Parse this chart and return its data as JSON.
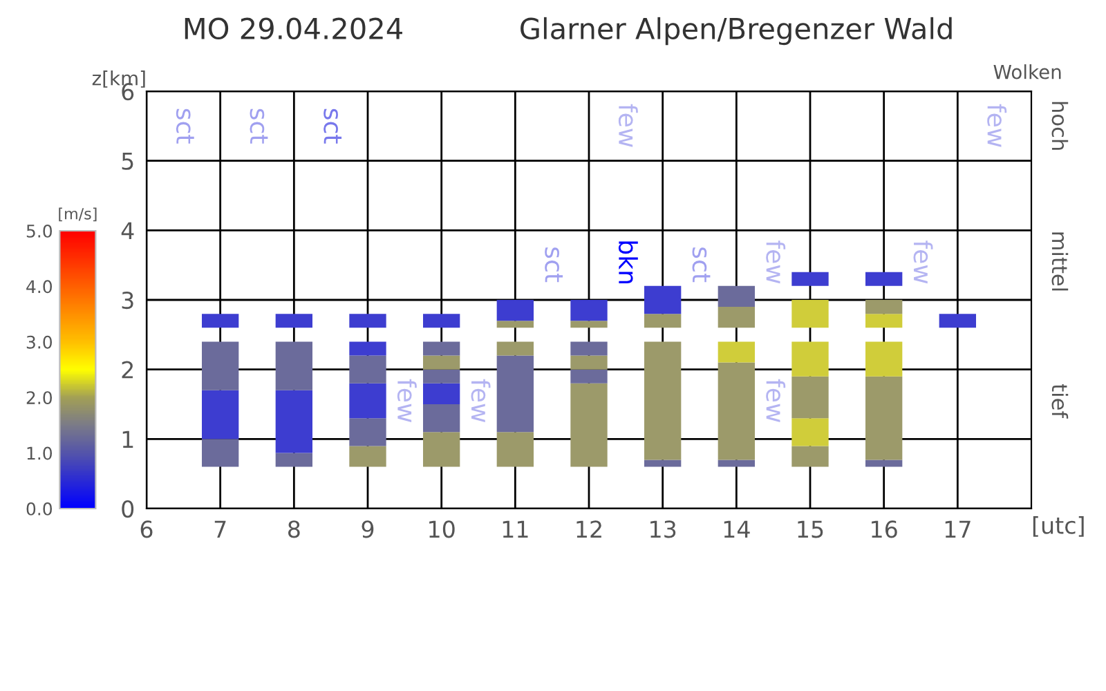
{
  "chart_data": {
    "type": "bar",
    "title": "MO 29.04.2024",
    "subtitle": "Glarner Alpen/Bregenzer Wald",
    "ylabel": "z[km]",
    "xlabel": "[utc]",
    "clabel": "[m/s]",
    "xlim": [
      6,
      18
    ],
    "xticks": [
      6,
      7,
      8,
      9,
      10,
      11,
      12,
      13,
      14,
      15,
      16,
      17
    ],
    "ylim": [
      0,
      6
    ],
    "yticks": [
      0,
      1,
      2,
      3,
      4,
      5,
      6
    ],
    "grid": true,
    "clim": [
      0,
      5
    ],
    "cticks": [
      {
        "value": 0,
        "label": "0.0"
      },
      {
        "value": 1,
        "label": "1.0"
      },
      {
        "value": 2,
        "label": "2.0"
      },
      {
        "value": 3,
        "label": "3.0"
      },
      {
        "value": 4,
        "label": "4.0"
      },
      {
        "value": 5,
        "label": "5.0"
      }
    ],
    "x": [
      7,
      8,
      9,
      10,
      11,
      12,
      13,
      14,
      15,
      16,
      17
    ],
    "series": [
      {
        "base": [
          0.6,
          0.6,
          0.6,
          0.6,
          0.6,
          0.6,
          0.6,
          0.6,
          0.6,
          0.6,
          2.6
        ],
        "values": [
          0.4,
          0.2,
          0.3,
          0.5,
          0.5,
          1.2,
          0.1,
          0.1,
          0.3,
          0.1,
          0.2
        ],
        "colors": [
          "#6b6b9b",
          "#6b6b9b",
          "#9c9a6a",
          "#9c9a6a",
          "#9c9a6a",
          "#9c9a6a",
          "#6b6b9b",
          "#6b6b9b",
          "#9c9a6a",
          "#6b6b9b",
          "#3d3dd0"
        ]
      },
      {
        "base": [
          1.0,
          0.8,
          0.9,
          1.1,
          1.1,
          1.8,
          0.7,
          0.7,
          0.9,
          0.7,
          null
        ],
        "values": [
          0.7,
          0.9,
          0.4,
          0.4,
          1.1,
          0.2,
          1.7,
          1.4,
          0.4,
          1.2,
          null
        ],
        "colors": [
          "#3d3dd0",
          "#3d3dd0",
          "#6b6b9b",
          "#6b6b9b",
          "#6b6b9b",
          "#6b6b9b",
          "#9c9a6a",
          "#9c9a6a",
          "#d0cd3a",
          "#9c9a6a",
          null
        ]
      },
      {
        "base": [
          1.7,
          1.7,
          1.3,
          1.5,
          2.2,
          2.0,
          2.6,
          2.1,
          1.3,
          1.9,
          null
        ],
        "values": [
          0.7,
          0.7,
          0.5,
          0.3,
          0.2,
          0.2,
          0.2,
          0.3,
          0.6,
          0.5,
          null
        ],
        "colors": [
          "#6b6b9b",
          "#6b6b9b",
          "#3d3dd0",
          "#3d3dd0",
          "#9c9a6a",
          "#9c9a6a",
          "#9c9a6a",
          "#d0cd3a",
          "#9c9a6a",
          "#d0cd3a",
          null
        ]
      },
      {
        "base": [
          2.6,
          2.6,
          1.8,
          1.8,
          2.6,
          2.2,
          2.8,
          2.6,
          1.9,
          2.6,
          null
        ],
        "values": [
          0.2,
          0.2,
          0.4,
          0.2,
          0.1,
          0.2,
          0.4,
          0.3,
          0.5,
          0.2,
          null
        ],
        "colors": [
          "#3d3dd0",
          "#3d3dd0",
          "#6b6b9b",
          "#6b6b9b",
          "#9c9a6a",
          "#6b6b9b",
          "#3d3dd0",
          "#9c9a6a",
          "#d0cd3a",
          "#d0cd3a",
          null
        ]
      },
      {
        "base": [
          null,
          null,
          2.2,
          2.0,
          2.7,
          2.6,
          null,
          2.9,
          2.6,
          2.8,
          null
        ],
        "values": [
          null,
          null,
          0.2,
          0.2,
          0.3,
          0.1,
          null,
          0.3,
          0.4,
          0.2,
          null
        ],
        "colors": [
          null,
          null,
          "#3d3dd0",
          "#9c9a6a",
          "#3d3dd0",
          "#9c9a6a",
          null,
          "#6b6b9b",
          "#d0cd3a",
          "#9c9a6a",
          null
        ]
      },
      {
        "base": [
          null,
          null,
          2.6,
          2.2,
          null,
          2.7,
          null,
          null,
          3.2,
          3.2,
          null
        ],
        "values": [
          null,
          null,
          0.2,
          0.2,
          null,
          0.3,
          null,
          null,
          0.2,
          0.2,
          null
        ],
        "colors": [
          null,
          null,
          "#3d3dd0",
          "#6b6b9b",
          null,
          "#3d3dd0",
          null,
          null,
          "#3d3dd0",
          "#3d3dd0",
          null
        ]
      },
      {
        "base": [
          null,
          null,
          null,
          2.6,
          null,
          null,
          null,
          null,
          null,
          null,
          null
        ],
        "values": [
          null,
          null,
          null,
          0.2,
          null,
          null,
          null,
          null,
          null,
          null,
          null
        ],
        "colors": [
          null,
          null,
          null,
          "#3d3dd0",
          null,
          null,
          null,
          null,
          null,
          null,
          null
        ]
      }
    ],
    "annotations": [
      "sct",
      "sct",
      "sct",
      "few",
      "few",
      "sct",
      "bkn",
      "sct",
      "few",
      "few",
      "few",
      "few",
      "few",
      "Wolken",
      "hoch",
      "mittel",
      "tief"
    ]
  }
}
